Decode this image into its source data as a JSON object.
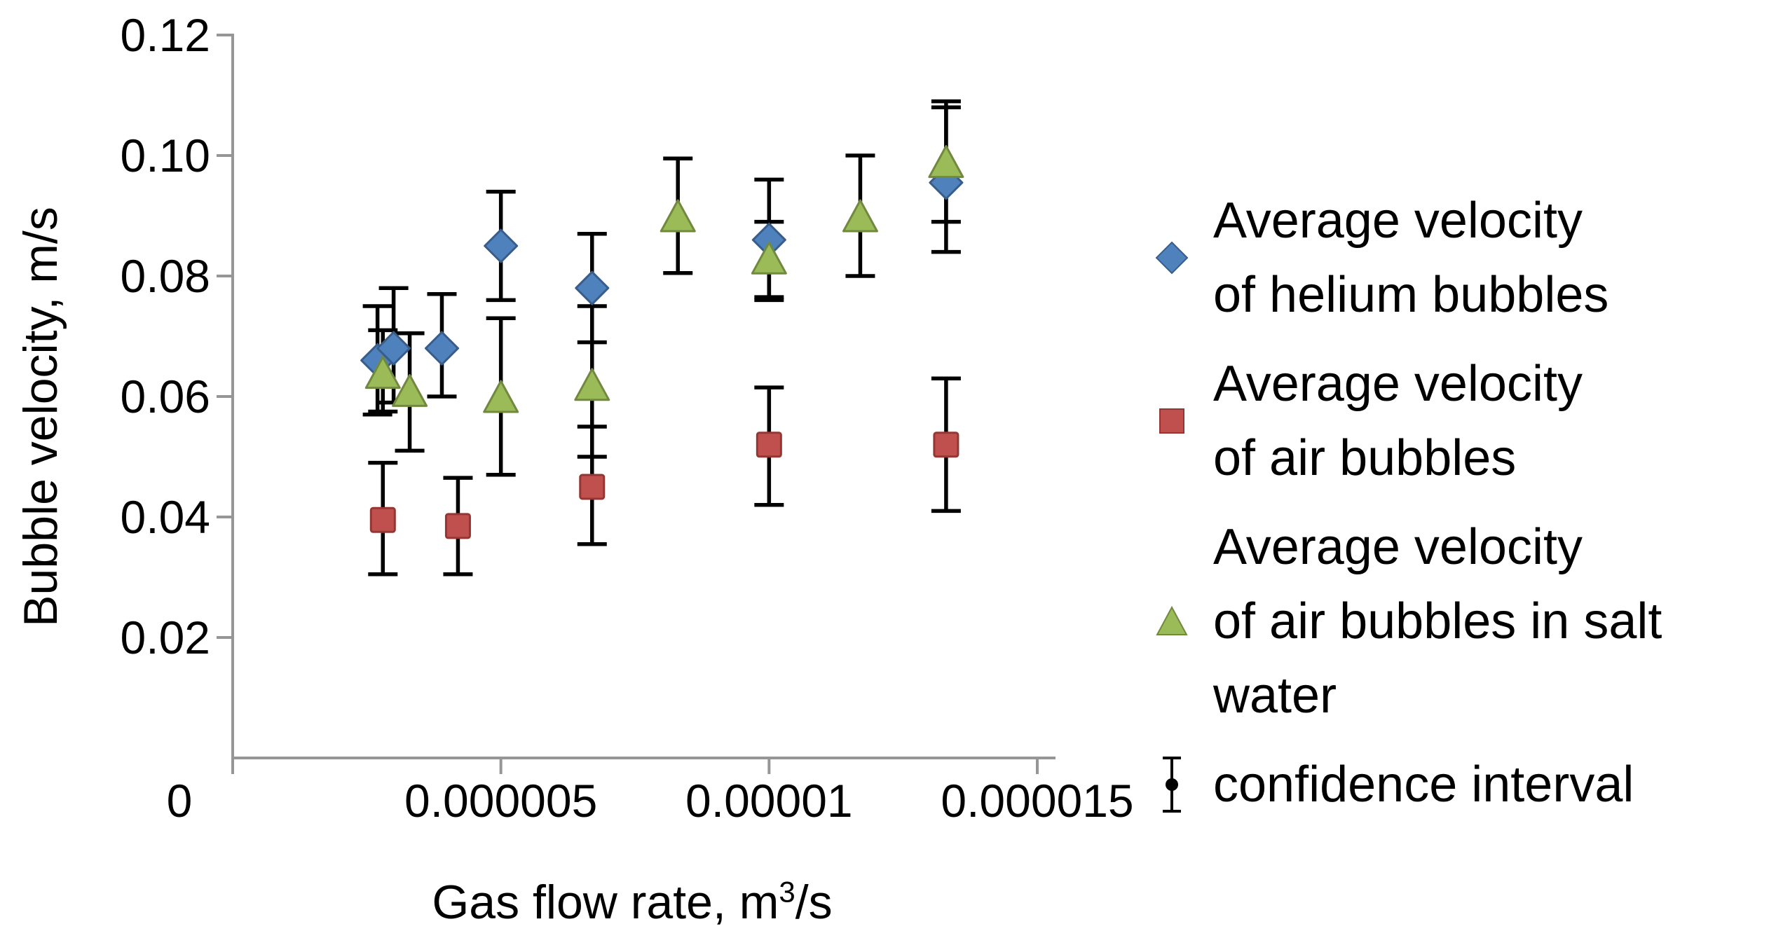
{
  "chart_data": {
    "type": "scatter",
    "title": "",
    "xlabel": {
      "prefix": "Gas flow rate, m",
      "sup": "3",
      "suffix": "/s"
    },
    "ylabel": "Bubble velocity, m/s",
    "xlim": [
      0,
      1.5e-05
    ],
    "ylim": [
      0,
      0.12
    ],
    "grid": false,
    "legend_position": "right",
    "axis_color": "#969696",
    "error_bar_color": "#000000",
    "text_color": "#000000",
    "x_ticks": [
      {
        "value": 0,
        "label": "0"
      },
      {
        "value": 5e-06,
        "label": "0.000005"
      },
      {
        "value": 1e-05,
        "label": "0.00001"
      },
      {
        "value": 1.5e-05,
        "label": "0.000015"
      }
    ],
    "y_ticks": [
      {
        "value": 0.12,
        "label": "0.12"
      },
      {
        "value": 0.1,
        "label": "0.10"
      },
      {
        "value": 0.08,
        "label": "0.08"
      },
      {
        "value": 0.06,
        "label": "0.06"
      },
      {
        "value": 0.04,
        "label": "0.04"
      },
      {
        "value": 0.02,
        "label": "0.02"
      }
    ],
    "series": [
      {
        "name": "Average velocity of helium bubbles",
        "marker": "diamond",
        "fill": "#4F81BD",
        "stroke": "#385D8A",
        "points": [
          {
            "x": 2.7e-06,
            "y": 0.066,
            "lo": 0.057,
            "hi": 0.075
          },
          {
            "x": 3e-06,
            "y": 0.068,
            "lo": 0.059,
            "hi": 0.078
          },
          {
            "x": 3.9e-06,
            "y": 0.068,
            "lo": 0.06,
            "hi": 0.077
          },
          {
            "x": 5e-06,
            "y": 0.085,
            "lo": 0.076,
            "hi": 0.094
          },
          {
            "x": 6.7e-06,
            "y": 0.078,
            "lo": 0.069,
            "hi": 0.087
          },
          {
            "x": 1e-05,
            "y": 0.086,
            "lo": 0.076,
            "hi": 0.096
          },
          {
            "x": 1.33e-05,
            "y": 0.0955,
            "lo": 0.084,
            "hi": 0.108
          }
        ]
      },
      {
        "name": "Average velocity of air bubbles",
        "marker": "square",
        "fill": "#C0504D",
        "stroke": "#943634",
        "points": [
          {
            "x": 2.8e-06,
            "y": 0.0395,
            "lo": 0.0305,
            "hi": 0.049
          },
          {
            "x": 4.2e-06,
            "y": 0.0385,
            "lo": 0.0305,
            "hi": 0.0465
          },
          {
            "x": 6.7e-06,
            "y": 0.045,
            "lo": 0.0355,
            "hi": 0.055
          },
          {
            "x": 1e-05,
            "y": 0.052,
            "lo": 0.042,
            "hi": 0.0615
          },
          {
            "x": 1.33e-05,
            "y": 0.052,
            "lo": 0.041,
            "hi": 0.063
          }
        ]
      },
      {
        "name": "Average velocity of air bubbles in salt water",
        "marker": "triangle",
        "fill": "#9BBB59",
        "stroke": "#71893F",
        "points": [
          {
            "x": 2.8e-06,
            "y": 0.064,
            "lo": 0.0575,
            "hi": 0.071
          },
          {
            "x": 3.3e-06,
            "y": 0.061,
            "lo": 0.051,
            "hi": 0.0705
          },
          {
            "x": 5e-06,
            "y": 0.06,
            "lo": 0.047,
            "hi": 0.073
          },
          {
            "x": 6.7e-06,
            "y": 0.062,
            "lo": 0.05,
            "hi": 0.075
          },
          {
            "x": 8.3e-06,
            "y": 0.09,
            "lo": 0.0805,
            "hi": 0.0995
          },
          {
            "x": 1e-05,
            "y": 0.083,
            "lo": 0.0765,
            "hi": 0.089
          },
          {
            "x": 1.17e-05,
            "y": 0.09,
            "lo": 0.08,
            "hi": 0.1
          },
          {
            "x": 1.33e-05,
            "y": 0.099,
            "lo": 0.089,
            "hi": 0.109
          }
        ]
      }
    ],
    "legend": {
      "items": [
        {
          "marker": "diamond",
          "label_lines": "Average velocity\nof helium bubbles"
        },
        {
          "marker": "square",
          "label_lines": "Average velocity\nof air bubbles"
        },
        {
          "marker": "triangle",
          "label_lines": "Average velocity\nof air bubbles in salt water"
        },
        {
          "marker": "errorbar",
          "label_lines": "confidence interval"
        }
      ]
    }
  }
}
